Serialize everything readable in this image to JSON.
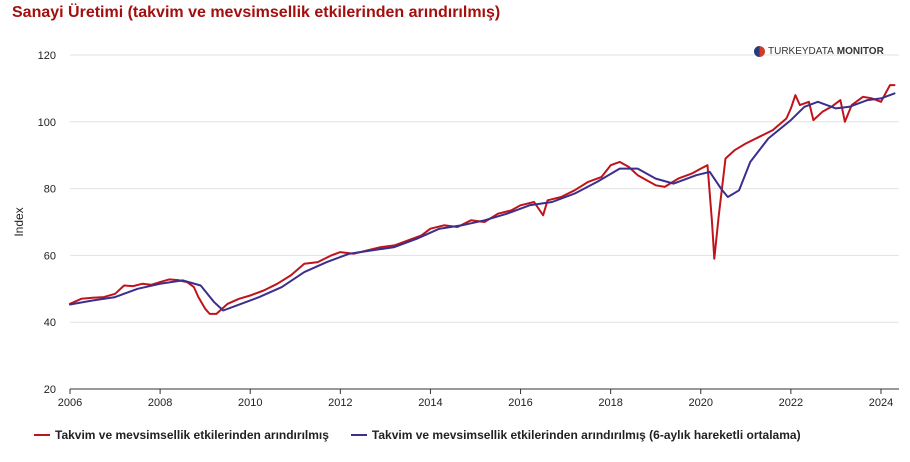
{
  "header": {
    "title": "Sanayi Üretimi (takvim ve mevsimsellik etkilerinden arındırılmış)"
  },
  "brand": {
    "name_light": "TURKEYDATA",
    "name_bold": "MONITOR"
  },
  "colors": {
    "series_main": "#c0141c",
    "series_ma": "#3a2f8c",
    "grid": "#e2e2e2",
    "axis": "#333333"
  },
  "chart_data": {
    "type": "line",
    "title": "Sanayi Üretimi (takvim ve mevsimsellik etkilerinden arındırılmış)",
    "xlabel": "",
    "ylabel": "Index",
    "xlim": [
      2006,
      2024.4
    ],
    "ylim": [
      20,
      120
    ],
    "x_ticks": [
      "2006",
      "2008",
      "2010",
      "2012",
      "2014",
      "2016",
      "2018",
      "2020",
      "2022",
      "2024"
    ],
    "y_ticks": [
      "20",
      "40",
      "60",
      "80",
      "100",
      "120"
    ],
    "grid": true,
    "legend_position": "bottom",
    "series": [
      {
        "name": "Takvim ve mevsimsellik etkilerinden arındırılmış",
        "color": "#c0141c",
        "points": [
          [
            2006.0,
            45.5
          ],
          [
            2006.25,
            47.0
          ],
          [
            2006.5,
            47.3
          ],
          [
            2006.75,
            47.5
          ],
          [
            2007.0,
            48.5
          ],
          [
            2007.2,
            51.0
          ],
          [
            2007.4,
            50.8
          ],
          [
            2007.6,
            51.5
          ],
          [
            2007.8,
            51.2
          ],
          [
            2008.0,
            52.0
          ],
          [
            2008.2,
            52.8
          ],
          [
            2008.4,
            52.6
          ],
          [
            2008.6,
            52.0
          ],
          [
            2008.75,
            50.5
          ],
          [
            2008.85,
            47.5
          ],
          [
            2009.0,
            44.0
          ],
          [
            2009.1,
            42.5
          ],
          [
            2009.25,
            42.5
          ],
          [
            2009.5,
            45.5
          ],
          [
            2009.75,
            47.0
          ],
          [
            2010.0,
            48.0
          ],
          [
            2010.3,
            49.5
          ],
          [
            2010.6,
            51.5
          ],
          [
            2010.9,
            54.0
          ],
          [
            2011.2,
            57.5
          ],
          [
            2011.5,
            58.0
          ],
          [
            2011.8,
            60.0
          ],
          [
            2012.0,
            61.0
          ],
          [
            2012.3,
            60.5
          ],
          [
            2012.6,
            61.5
          ],
          [
            2012.9,
            62.5
          ],
          [
            2013.2,
            63.0
          ],
          [
            2013.5,
            64.5
          ],
          [
            2013.8,
            66.0
          ],
          [
            2014.0,
            68.0
          ],
          [
            2014.3,
            69.0
          ],
          [
            2014.6,
            68.5
          ],
          [
            2014.9,
            70.5
          ],
          [
            2015.2,
            70.0
          ],
          [
            2015.5,
            72.5
          ],
          [
            2015.8,
            73.5
          ],
          [
            2016.0,
            75.0
          ],
          [
            2016.3,
            76.0
          ],
          [
            2016.5,
            72.0
          ],
          [
            2016.6,
            76.5
          ],
          [
            2016.9,
            77.5
          ],
          [
            2017.2,
            79.5
          ],
          [
            2017.5,
            82.0
          ],
          [
            2017.8,
            83.5
          ],
          [
            2018.0,
            87.0
          ],
          [
            2018.2,
            88.0
          ],
          [
            2018.4,
            86.5
          ],
          [
            2018.6,
            84.0
          ],
          [
            2018.8,
            82.5
          ],
          [
            2019.0,
            81.0
          ],
          [
            2019.2,
            80.5
          ],
          [
            2019.5,
            83.0
          ],
          [
            2019.8,
            84.5
          ],
          [
            2020.0,
            86.0
          ],
          [
            2020.15,
            87.0
          ],
          [
            2020.25,
            70.0
          ],
          [
            2020.3,
            59.0
          ],
          [
            2020.4,
            72.0
          ],
          [
            2020.55,
            89.0
          ],
          [
            2020.75,
            91.5
          ],
          [
            2021.0,
            93.5
          ],
          [
            2021.3,
            95.5
          ],
          [
            2021.6,
            97.5
          ],
          [
            2021.9,
            101.0
          ],
          [
            2022.0,
            104.0
          ],
          [
            2022.1,
            108.0
          ],
          [
            2022.2,
            105.0
          ],
          [
            2022.4,
            106.0
          ],
          [
            2022.5,
            100.5
          ],
          [
            2022.7,
            103.0
          ],
          [
            2022.9,
            104.5
          ],
          [
            2023.1,
            106.5
          ],
          [
            2023.2,
            100.0
          ],
          [
            2023.35,
            105.0
          ],
          [
            2023.6,
            107.5
          ],
          [
            2023.8,
            107.0
          ],
          [
            2024.0,
            106.0
          ],
          [
            2024.1,
            108.5
          ],
          [
            2024.2,
            111.0
          ],
          [
            2024.3,
            111.0
          ]
        ]
      },
      {
        "name": "Takvim ve mevsimsellik etkilerinden arındırılmış (6-aylık hareketli ortalama)",
        "color": "#3a2f8c",
        "points": [
          [
            2006.0,
            45.3
          ],
          [
            2006.5,
            46.5
          ],
          [
            2007.0,
            47.5
          ],
          [
            2007.5,
            50.0
          ],
          [
            2008.0,
            51.5
          ],
          [
            2008.5,
            52.5
          ],
          [
            2008.9,
            51.0
          ],
          [
            2009.2,
            46.0
          ],
          [
            2009.4,
            43.5
          ],
          [
            2009.8,
            45.5
          ],
          [
            2010.2,
            47.5
          ],
          [
            2010.7,
            50.5
          ],
          [
            2011.2,
            55.0
          ],
          [
            2011.7,
            58.0
          ],
          [
            2012.2,
            60.5
          ],
          [
            2012.7,
            61.5
          ],
          [
            2013.2,
            62.5
          ],
          [
            2013.7,
            65.0
          ],
          [
            2014.2,
            68.0
          ],
          [
            2014.7,
            69.0
          ],
          [
            2015.2,
            70.5
          ],
          [
            2015.7,
            72.5
          ],
          [
            2016.2,
            75.0
          ],
          [
            2016.7,
            76.0
          ],
          [
            2017.2,
            78.5
          ],
          [
            2017.7,
            82.0
          ],
          [
            2018.2,
            86.0
          ],
          [
            2018.6,
            86.0
          ],
          [
            2019.0,
            83.0
          ],
          [
            2019.4,
            81.5
          ],
          [
            2019.9,
            84.0
          ],
          [
            2020.2,
            85.0
          ],
          [
            2020.45,
            80.0
          ],
          [
            2020.6,
            77.5
          ],
          [
            2020.85,
            79.5
          ],
          [
            2021.1,
            88.0
          ],
          [
            2021.5,
            95.0
          ],
          [
            2022.0,
            100.5
          ],
          [
            2022.3,
            104.5
          ],
          [
            2022.6,
            106.0
          ],
          [
            2023.0,
            104.0
          ],
          [
            2023.3,
            104.5
          ],
          [
            2023.7,
            106.5
          ],
          [
            2024.0,
            107.0
          ],
          [
            2024.3,
            108.5
          ]
        ]
      }
    ]
  }
}
